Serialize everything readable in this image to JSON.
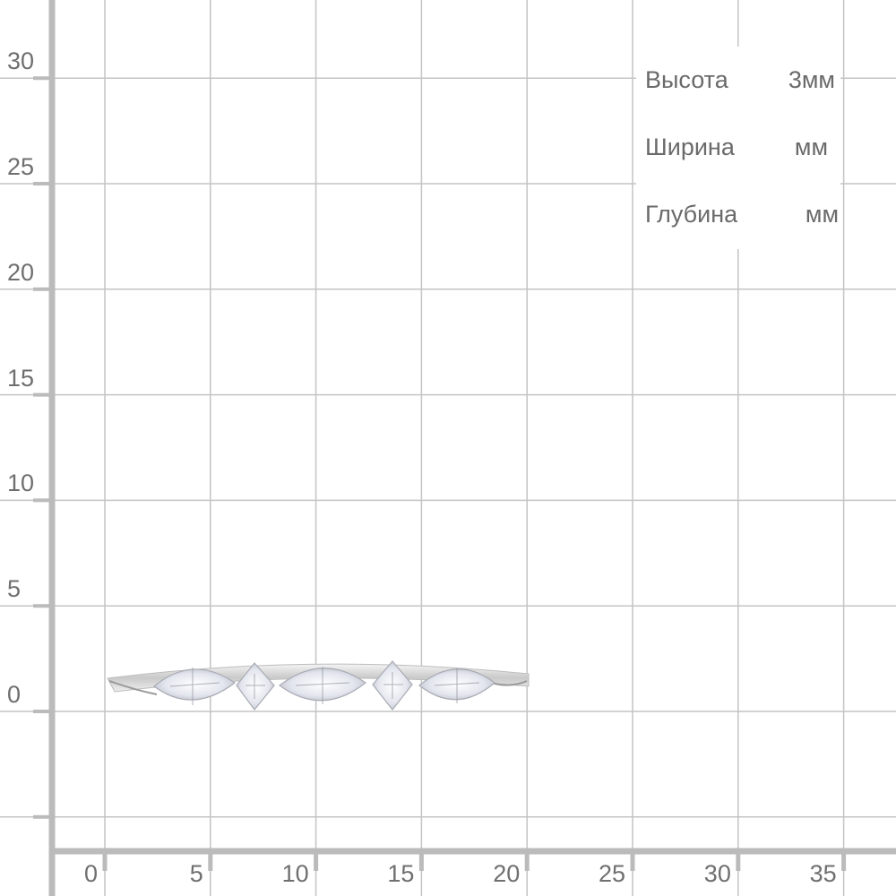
{
  "grid": {
    "y_labels": [
      "30",
      "25",
      "20",
      "15",
      "10",
      "5",
      "0"
    ],
    "x_labels": [
      "0",
      "5",
      "10",
      "15",
      "20",
      "25",
      "30",
      "35"
    ],
    "line_color": "#c4c4c4",
    "axis_color": "#bbbbbb",
    "label_color": "#6f6f6f"
  },
  "dimensions": [
    {
      "label": "Высота",
      "value": "3мм"
    },
    {
      "label": "Ширина",
      "value": "мм"
    },
    {
      "label": "Глубина",
      "value": "мм"
    }
  ],
  "product": {
    "icon": "ring-with-marquise-stones"
  }
}
